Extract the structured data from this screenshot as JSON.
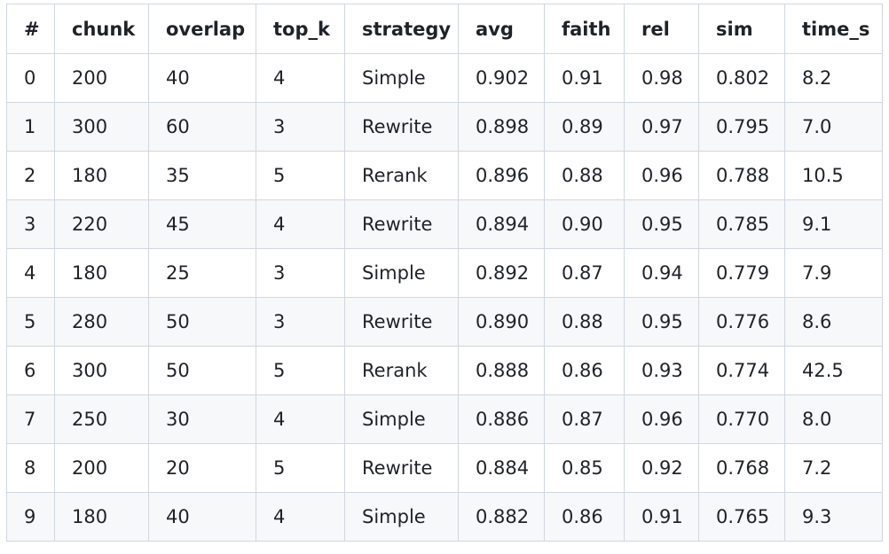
{
  "table": {
    "headers": [
      "#",
      "chunk",
      "overlap",
      "top_k",
      "strategy",
      "avg",
      "faith",
      "rel",
      "sim",
      "time_s"
    ],
    "rows": [
      [
        "0",
        "200",
        "40",
        "4",
        "Simple",
        "0.902",
        "0.91",
        "0.98",
        "0.802",
        "8.2"
      ],
      [
        "1",
        "300",
        "60",
        "3",
        "Rewrite",
        "0.898",
        "0.89",
        "0.97",
        "0.795",
        "7.0"
      ],
      [
        "2",
        "180",
        "35",
        "5",
        "Rerank",
        "0.896",
        "0.88",
        "0.96",
        "0.788",
        "10.5"
      ],
      [
        "3",
        "220",
        "45",
        "4",
        "Rewrite",
        "0.894",
        "0.90",
        "0.95",
        "0.785",
        "9.1"
      ],
      [
        "4",
        "180",
        "25",
        "3",
        "Simple",
        "0.892",
        "0.87",
        "0.94",
        "0.779",
        "7.9"
      ],
      [
        "5",
        "280",
        "50",
        "3",
        "Rewrite",
        "0.890",
        "0.88",
        "0.95",
        "0.776",
        "8.6"
      ],
      [
        "6",
        "300",
        "50",
        "5",
        "Rerank",
        "0.888",
        "0.86",
        "0.93",
        "0.774",
        "42.5"
      ],
      [
        "7",
        "250",
        "30",
        "4",
        "Simple",
        "0.886",
        "0.87",
        "0.96",
        "0.770",
        "8.0"
      ],
      [
        "8",
        "200",
        "20",
        "5",
        "Rewrite",
        "0.884",
        "0.85",
        "0.92",
        "0.768",
        "7.2"
      ],
      [
        "9",
        "180",
        "40",
        "4",
        "Simple",
        "0.882",
        "0.86",
        "0.91",
        "0.765",
        "9.3"
      ]
    ]
  }
}
